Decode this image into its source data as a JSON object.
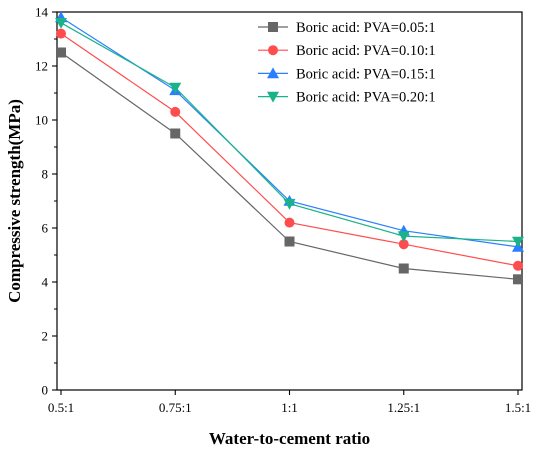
{
  "chart_data": {
    "type": "line",
    "title": "",
    "xlabel": "Water-to-cement ratio",
    "ylabel": "Compressive strength(MPa)",
    "categories": [
      "0.5:1",
      "0.75:1",
      "1:1",
      "1.25:1",
      "1.5:1"
    ],
    "ylim": [
      0,
      14
    ],
    "yticks": [
      "0",
      "2",
      "4",
      "6",
      "8",
      "10",
      "12",
      "14"
    ],
    "grid": false,
    "legend_position": "top-right",
    "series": [
      {
        "name": "Boric acid: PVA=0.05:1",
        "values": [
          12.5,
          9.5,
          5.5,
          4.5,
          4.1
        ],
        "color": "#666666",
        "marker": "square"
      },
      {
        "name": "Boric acid: PVA=0.10:1",
        "values": [
          13.2,
          10.3,
          6.2,
          5.4,
          4.6
        ],
        "color": "#ff4d4d",
        "marker": "circle"
      },
      {
        "name": "Boric acid: PVA=0.15:1",
        "values": [
          13.8,
          11.1,
          7.0,
          5.9,
          5.3
        ],
        "color": "#2a7fff",
        "marker": "triangle-up"
      },
      {
        "name": "Boric acid: PVA=0.20:1",
        "values": [
          13.6,
          11.2,
          6.9,
          5.7,
          5.5
        ],
        "color": "#19b38a",
        "marker": "triangle-down"
      }
    ]
  }
}
